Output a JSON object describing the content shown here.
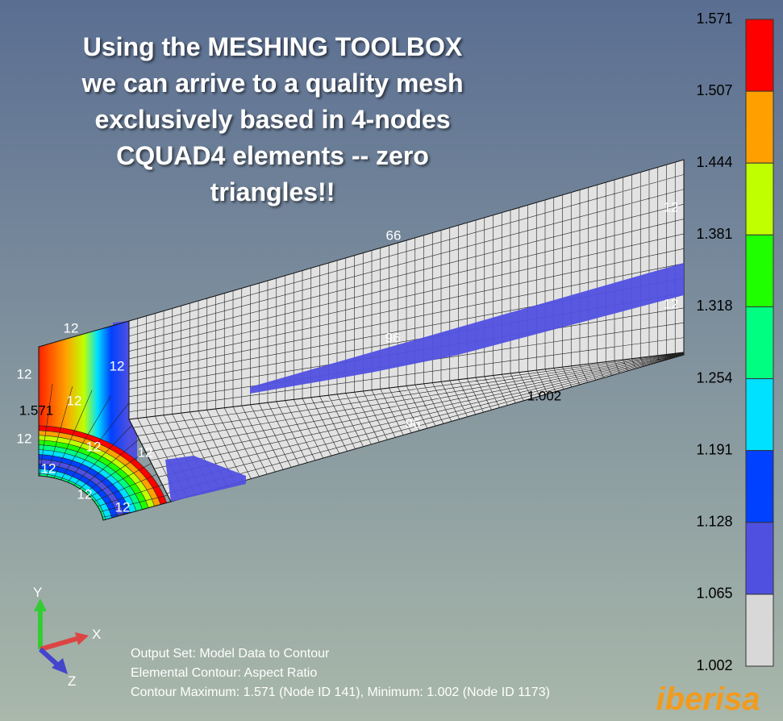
{
  "title_lines": [
    "Using the MESHING TOOLBOX",
    "we can arrive to a quality mesh",
    "exclusively based in 4-nodes",
    "CQUAD4 elements -- zero",
    "triangles!!"
  ],
  "mesh_labels": [
    "66",
    "12",
    "12",
    "12",
    "12",
    "12",
    "12",
    "12",
    "12",
    "12",
    "12",
    "12",
    "12",
    "96",
    "96",
    "1.002",
    "1.571"
  ],
  "legend": {
    "ticks": [
      "1.571",
      "1.507",
      "1.444",
      "1.381",
      "1.318",
      "1.254",
      "1.191",
      "1.128",
      "1.065",
      "1.002"
    ],
    "colors": [
      "#ff0000",
      "#ffa000",
      "#c0ff00",
      "#20ff00",
      "#00ff80",
      "#00e0ff",
      "#0040ff",
      "#5050e0",
      "#d8d8d8"
    ]
  },
  "axes": {
    "y": "Y",
    "x": "X",
    "z": "Z"
  },
  "status": [
    "Output Set: Model Data to Contour",
    "Elemental Contour: Aspect Ratio",
    "Contour Maximum: 1.571 (Node ID 141), Minimum: 1.002 (Node ID 1173)"
  ],
  "logo": "iberisa"
}
